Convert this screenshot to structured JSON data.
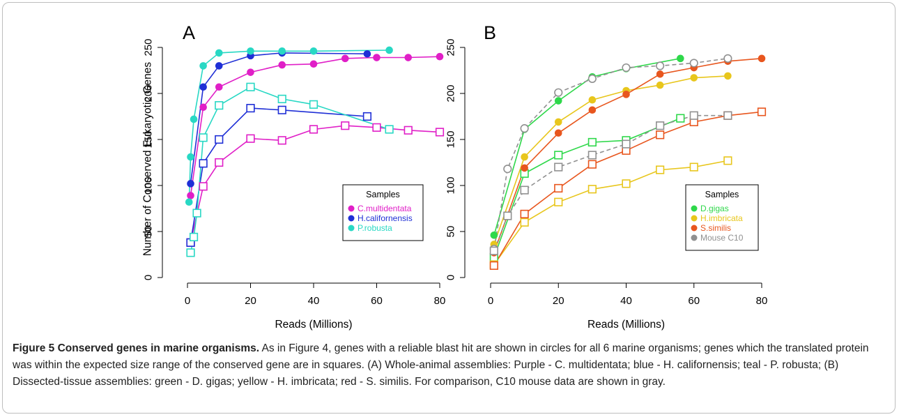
{
  "caption": {
    "label": "Figure 5 Conserved genes in marine organisms.",
    "text": " As in Figure 4, genes with a reliable blast hit are shown in circles for all 6 marine organisms; genes which the translated protein was within the expected size range of the conserved gene are in squares. (A) Whole-animal assemblies: Purple - C. multidentata; blue - H. californensis; teal - P. robusta; (B) Dissected-tissue assemblies: green - D. gigas; yellow - H. imbricata; red - S. similis. For comparison, C10 mouse data are shown in gray."
  },
  "chart_data": [
    {
      "type": "line",
      "panel_label": "A",
      "xlabel": "Reads (Millions)",
      "ylabel": "Number of Conserved Eukaryotic Genes",
      "xlim": [
        0,
        80
      ],
      "ylim": [
        0,
        250
      ],
      "xticks": [
        0,
        20,
        40,
        60,
        80
      ],
      "yticks": [
        0,
        50,
        100,
        150,
        200,
        250
      ],
      "legend": {
        "title": "Samples",
        "position": "right",
        "entries": [
          "C.multidentata",
          "H.californensis",
          "P.robusta"
        ]
      },
      "series": [
        {
          "name": "C.multidentata",
          "marker": "circle",
          "color": "#e01fc7",
          "dashed": false,
          "x": [
            1,
            5,
            10,
            20,
            30,
            40,
            50,
            60,
            70,
            80
          ],
          "y": [
            89,
            185,
            207,
            223,
            231,
            232,
            238,
            239,
            239,
            240
          ]
        },
        {
          "name": "C.multidentata",
          "marker": "square",
          "color": "#e01fc7",
          "dashed": false,
          "x": [
            1,
            5,
            10,
            20,
            30,
            40,
            50,
            60,
            70,
            80
          ],
          "y": [
            38,
            99,
            125,
            151,
            149,
            161,
            165,
            163,
            160,
            158
          ]
        },
        {
          "name": "H.californensis",
          "marker": "circle",
          "color": "#1f2fd6",
          "dashed": false,
          "x": [
            1,
            5,
            10,
            20,
            30,
            57
          ],
          "y": [
            102,
            207,
            230,
            241,
            244,
            243
          ]
        },
        {
          "name": "H.californensis",
          "marker": "square",
          "color": "#1f2fd6",
          "dashed": false,
          "x": [
            1,
            5,
            10,
            20,
            30,
            57
          ],
          "y": [
            38,
            124,
            150,
            184,
            182,
            175
          ]
        },
        {
          "name": "P.robusta",
          "marker": "circle",
          "color": "#28d8c4",
          "dashed": false,
          "x": [
            0.5,
            1,
            2,
            5,
            10,
            20,
            30,
            40,
            64
          ],
          "y": [
            82,
            131,
            172,
            230,
            244,
            246,
            246,
            246,
            247
          ]
        },
        {
          "name": "P.robusta",
          "marker": "square",
          "color": "#28d8c4",
          "dashed": false,
          "x": [
            1,
            2,
            3,
            5,
            10,
            20,
            30,
            40,
            64
          ],
          "y": [
            27,
            44,
            70,
            152,
            187,
            207,
            194,
            188,
            161
          ]
        }
      ]
    },
    {
      "type": "line",
      "panel_label": "B",
      "xlabel": "Reads (Millions)",
      "ylabel": "",
      "xlim": [
        0,
        80
      ],
      "ylim": [
        0,
        250
      ],
      "xticks": [
        0,
        20,
        40,
        60,
        80
      ],
      "yticks": [
        0,
        50,
        100,
        150,
        200,
        250
      ],
      "legend": {
        "title": "Samples",
        "position": "right",
        "entries": [
          "D.gigas",
          "H.imbricata",
          "S.similis",
          "Mouse C10"
        ]
      },
      "series": [
        {
          "name": "D.gigas",
          "marker": "circle",
          "color": "#2ed84a",
          "dashed": false,
          "x": [
            1,
            10,
            20,
            30,
            40,
            56
          ],
          "y": [
            46,
            161,
            192,
            218,
            227,
            238
          ]
        },
        {
          "name": "D.gigas",
          "marker": "square",
          "color": "#2ed84a",
          "dashed": false,
          "x": [
            1,
            10,
            20,
            30,
            40,
            56
          ],
          "y": [
            22,
            113,
            133,
            147,
            149,
            173
          ]
        },
        {
          "name": "H.imbricata",
          "marker": "circle",
          "color": "#e8c61c",
          "dashed": false,
          "x": [
            1,
            10,
            20,
            30,
            40,
            50,
            60,
            70
          ],
          "y": [
            36,
            131,
            169,
            193,
            203,
            209,
            217,
            219
          ]
        },
        {
          "name": "H.imbricata",
          "marker": "square",
          "color": "#e8c61c",
          "dashed": false,
          "x": [
            1,
            10,
            20,
            30,
            40,
            50,
            60,
            70
          ],
          "y": [
            14,
            60,
            82,
            96,
            102,
            117,
            120,
            127
          ]
        },
        {
          "name": "S.similis",
          "marker": "circle",
          "color": "#e8561e",
          "dashed": false,
          "x": [
            1,
            10,
            20,
            30,
            40,
            50,
            60,
            70,
            80
          ],
          "y": [
            27,
            119,
            157,
            182,
            199,
            221,
            228,
            235,
            238
          ]
        },
        {
          "name": "S.similis",
          "marker": "square",
          "color": "#e8561e",
          "dashed": false,
          "x": [
            1,
            10,
            20,
            30,
            40,
            50,
            60,
            70,
            80
          ],
          "y": [
            13,
            69,
            97,
            123,
            138,
            155,
            169,
            176,
            180
          ]
        },
        {
          "name": "Mouse C10",
          "marker": "circle",
          "color": "#909090",
          "dashed": true,
          "x": [
            1,
            5,
            10,
            20,
            30,
            40,
            50,
            60,
            70
          ],
          "y": [
            31,
            118,
            162,
            201,
            216,
            228,
            230,
            233,
            238
          ]
        },
        {
          "name": "Mouse C10",
          "marker": "square",
          "color": "#909090",
          "dashed": true,
          "x": [
            1,
            5,
            10,
            20,
            30,
            40,
            50,
            60,
            70
          ],
          "y": [
            29,
            67,
            95,
            120,
            133,
            145,
            165,
            176,
            176
          ]
        }
      ]
    }
  ]
}
